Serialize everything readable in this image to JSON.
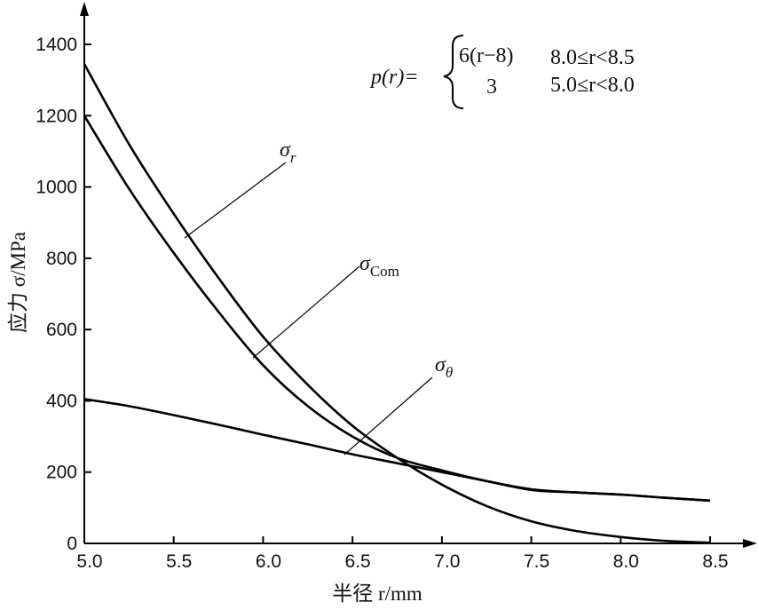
{
  "chart_data": {
    "type": "line",
    "title": "",
    "xlabel": "半径 r/mm",
    "ylabel": "应力 σ/MPa",
    "xlim": [
      4.95,
      8.75
    ],
    "ylim": [
      0,
      1500
    ],
    "x_ticks": [
      5.0,
      5.5,
      6.0,
      6.5,
      7.0,
      7.5,
      8.0,
      8.5
    ],
    "y_ticks": [
      0,
      200,
      400,
      600,
      800,
      1000,
      1200,
      1400
    ],
    "x_tick_labels": [
      "5.0",
      "5.5",
      "6.0",
      "6.5",
      "7.0",
      "7.5",
      "8.0",
      "8.5"
    ],
    "y_tick_labels": [
      "0",
      "200",
      "400",
      "600",
      "800",
      "1000",
      "1200",
      "1400"
    ],
    "grid": false,
    "series": [
      {
        "name": "σ_r",
        "label_main": "σ",
        "label_sub": "r",
        "x": [
          5.0,
          5.25,
          5.5,
          5.75,
          6.0,
          6.25,
          6.5,
          6.75,
          7.0,
          7.25,
          7.5,
          7.75,
          8.0,
          8.25,
          8.5
        ],
        "values": [
          1345,
          1120,
          925,
          745,
          580,
          445,
          330,
          240,
          165,
          105,
          62,
          35,
          18,
          7,
          2
        ]
      },
      {
        "name": "σ_Com",
        "label_main": "σ",
        "label_sub": "Com",
        "x": [
          5.0,
          5.25,
          5.5,
          5.75,
          6.0,
          6.25,
          6.5,
          6.75,
          7.0,
          7.25,
          7.5,
          7.75,
          8.0,
          8.25,
          8.5
        ],
        "values": [
          1200,
          995,
          815,
          650,
          500,
          385,
          300,
          240,
          205,
          175,
          152,
          143,
          137,
          128,
          120
        ]
      },
      {
        "name": "σ_θ",
        "label_main": "σ",
        "label_sub": "θ",
        "x": [
          5.0,
          5.25,
          5.5,
          5.75,
          6.0,
          6.25,
          6.5,
          6.75,
          7.0,
          7.25,
          7.5,
          7.75,
          8.0,
          8.25,
          8.5
        ],
        "values": [
          405,
          385,
          360,
          333,
          305,
          278,
          250,
          225,
          200,
          175,
          150,
          143,
          137,
          128,
          120
        ]
      }
    ],
    "annotations": {
      "formula_lhs": "p(r)=",
      "case1_expr": "6(r−8)",
      "case1_cond": "8.0≤r<8.5",
      "case2_expr": "3",
      "case2_cond": "5.0≤r<8.0"
    }
  }
}
